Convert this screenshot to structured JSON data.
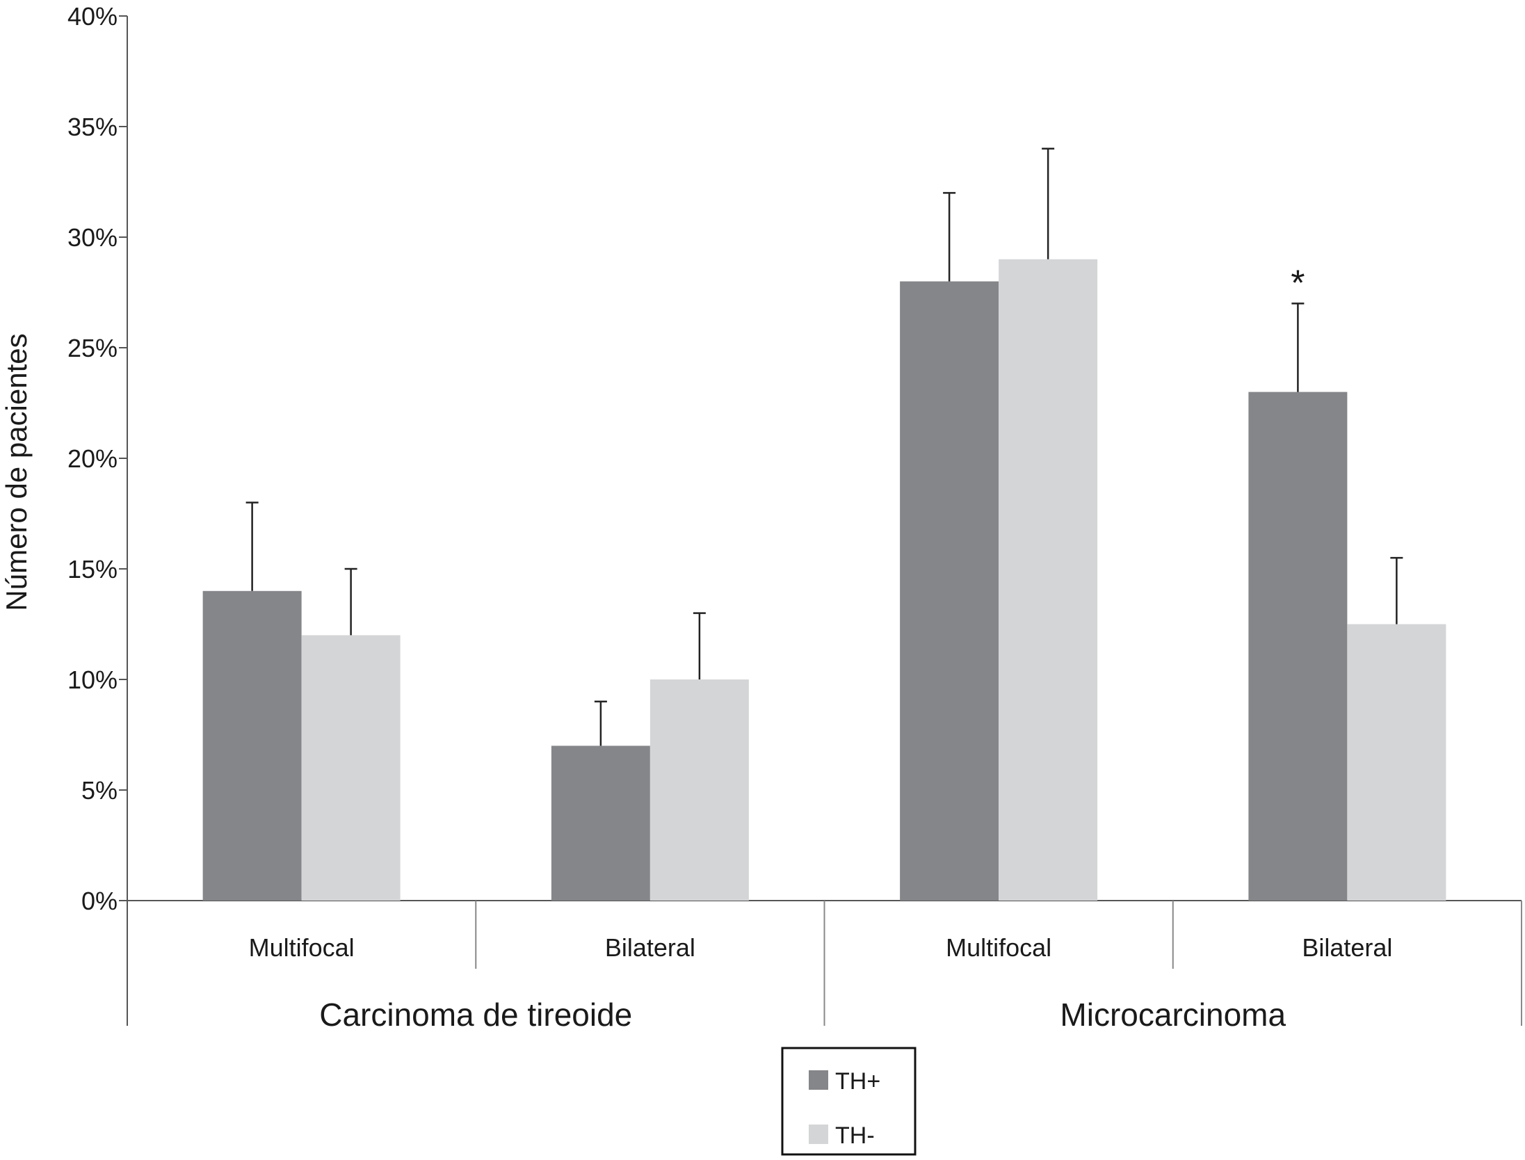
{
  "chart_data": {
    "type": "bar",
    "title": "",
    "ylabel": "Número de pacientes",
    "ylim": [
      0,
      40
    ],
    "y_ticks": [
      0,
      5,
      10,
      15,
      20,
      25,
      30,
      35,
      40
    ],
    "y_tick_labels": [
      "0%",
      "5%",
      "10%",
      "15%",
      "20%",
      "25%",
      "30%",
      "35%",
      "40%"
    ],
    "categories": [
      "Multifocal",
      "Bilateral",
      "Multifocal",
      "Bilateral"
    ],
    "groups": [
      {
        "label": "Carcinoma de tireoide",
        "categories": [
          0,
          1
        ]
      },
      {
        "label": "Microcarcinoma",
        "categories": [
          2,
          3
        ]
      }
    ],
    "series": [
      {
        "name": "TH+",
        "color": "#858689",
        "values": [
          14,
          7,
          28,
          23
        ],
        "error_upper": [
          18,
          9,
          32,
          27
        ]
      },
      {
        "name": "TH-",
        "color": "#d4d5d7",
        "values": [
          12,
          10,
          29,
          12.5
        ],
        "error_upper": [
          15,
          13,
          34,
          15.5
        ]
      }
    ],
    "annotations": [
      {
        "text": "*",
        "category": 3,
        "series": 0
      }
    ],
    "legend": {
      "position": "bottom-center"
    },
    "grid": false
  }
}
